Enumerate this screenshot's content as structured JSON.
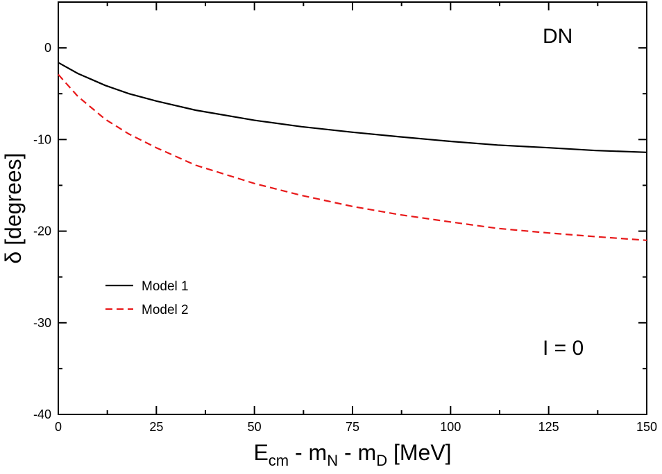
{
  "chart_data": {
    "type": "line",
    "xlabel": {
      "main": "E",
      "main_sub": "cm",
      "mid1": " - m",
      "mid1_sub": "N",
      "mid2": " - m",
      "mid2_sub": "D",
      "tail": " [MeV]"
    },
    "ylabel": {
      "symbol": "δ",
      "text": " [degrees]"
    },
    "xlim": [
      0,
      150
    ],
    "ylim": [
      -40,
      5
    ],
    "x_ticks": [
      0,
      25,
      50,
      75,
      100,
      125,
      150
    ],
    "x_tick_labels": [
      "0",
      "25",
      "50",
      "75",
      "100",
      "125",
      "150"
    ],
    "y_ticks": [
      0,
      -10,
      -20,
      -30,
      -40
    ],
    "y_tick_labels": [
      "0",
      "-10",
      "-20",
      "-30",
      "-40"
    ],
    "annotations": {
      "top_right": "DN",
      "bottom_right": "I = 0"
    },
    "grid": false,
    "legend_position": "left",
    "series": [
      {
        "name": "Model 1",
        "color": "#000000",
        "dash": "solid",
        "x": [
          0,
          5,
          12,
          18,
          25,
          35,
          50,
          62,
          75,
          87,
          100,
          112,
          125,
          137,
          150
        ],
        "y": [
          -1.6,
          -2.8,
          -4.1,
          -5.0,
          -5.8,
          -6.8,
          -7.9,
          -8.6,
          -9.2,
          -9.7,
          -10.2,
          -10.6,
          -10.9,
          -11.2,
          -11.4
        ]
      },
      {
        "name": "Model 2",
        "color": "#e8191a",
        "dash": "dashed",
        "x": [
          0,
          5,
          12,
          18,
          25,
          35,
          50,
          62,
          75,
          87,
          100,
          112,
          125,
          137,
          150
        ],
        "y": [
          -2.9,
          -5.3,
          -7.8,
          -9.4,
          -10.9,
          -12.8,
          -14.8,
          -16.1,
          -17.3,
          -18.2,
          -19.0,
          -19.7,
          -20.2,
          -20.6,
          -21.0
        ]
      }
    ]
  }
}
